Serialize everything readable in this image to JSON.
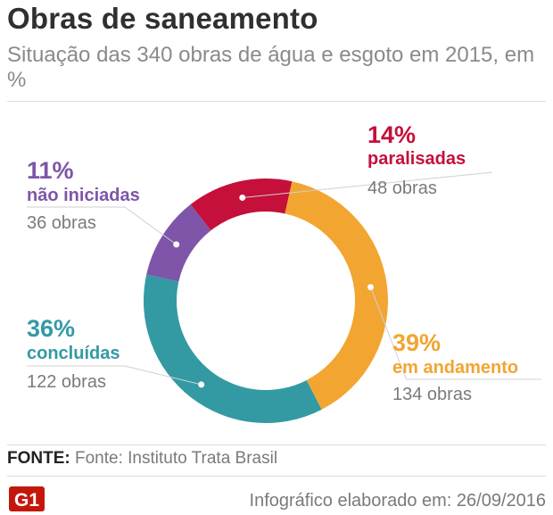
{
  "header": {
    "title": "Obras de saneamento",
    "subtitle": "Situação das 340 obras de água e esgoto em 2015, em %"
  },
  "chart_data": {
    "type": "pie",
    "variant": "donut",
    "title": "Obras de saneamento",
    "subtitle": "Situação das 340 obras de água e esgoto em 2015, em %",
    "slices": [
      {
        "key": "paralisadas",
        "label": "paralisadas",
        "percent": 14,
        "percent_label": "14%",
        "count": 48,
        "count_label": "48 obras",
        "color": "#c4103a"
      },
      {
        "key": "andamento",
        "label": "em andamento",
        "percent": 39,
        "percent_label": "39%",
        "count": 134,
        "count_label": "134 obras",
        "color": "#f2a531"
      },
      {
        "key": "concluidas",
        "label": "concluídas",
        "percent": 36,
        "percent_label": "36%",
        "count": 122,
        "count_label": "122 obras",
        "color": "#339aa4"
      },
      {
        "key": "nao_iniciadas",
        "label": "não iniciadas",
        "percent": 11,
        "percent_label": "11%",
        "count": 36,
        "count_label": "36 obras",
        "color": "#7e55a8"
      }
    ]
  },
  "footer": {
    "source_label": "FONTE:",
    "source_text": "Fonte: Instituto Trata Brasil",
    "logo_text": "G1",
    "logo_color": "#c4170c",
    "credit": "Infográfico elaborado em: 26/09/2016"
  }
}
